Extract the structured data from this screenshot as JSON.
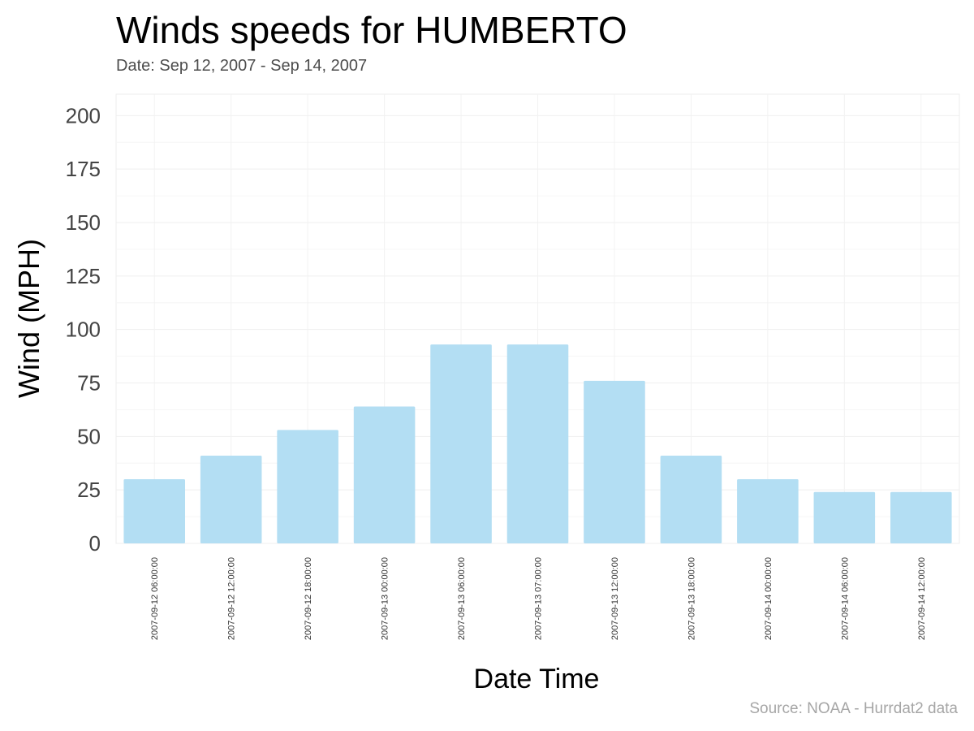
{
  "chart_data": {
    "type": "bar",
    "title": "Winds speeds for HUMBERTO",
    "subtitle": "Date:  Sep 12, 2007 - Sep 14, 2007",
    "caption": "Source: NOAA - Hurrdat2 data",
    "xlabel": "Date Time",
    "ylabel": "Wind (MPH)",
    "ylim": [
      0,
      210
    ],
    "yticks": [
      0,
      25,
      50,
      75,
      100,
      125,
      150,
      175,
      200
    ],
    "grid": true,
    "categories": [
      "2007-09-12 06:00:00",
      "2007-09-12 12:00:00",
      "2007-09-12 18:00:00",
      "2007-09-13 00:00:00",
      "2007-09-13 06:00:00",
      "2007-09-13 07:00:00",
      "2007-09-13 12:00:00",
      "2007-09-13 18:00:00",
      "2007-09-14 00:00:00",
      "2007-09-14 06:00:00",
      "2007-09-14 12:00:00"
    ],
    "values": [
      30,
      41,
      53,
      64,
      93,
      93,
      76,
      41,
      30,
      24,
      24
    ],
    "bar_color": "#b3def3"
  }
}
